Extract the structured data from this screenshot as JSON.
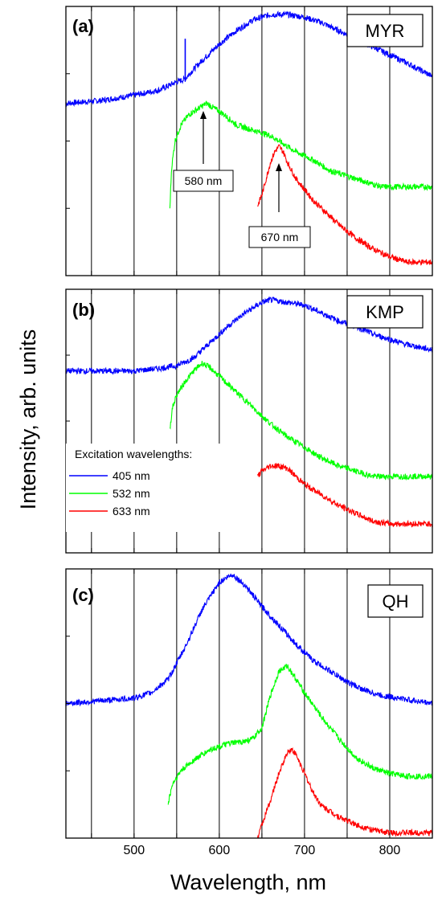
{
  "chart_data": {
    "type": "line",
    "xlabel": "Wavelength, nm",
    "ylabel": "Intensity, arb. units",
    "xlim": [
      420,
      850
    ],
    "x_ticks": [
      500,
      600,
      700,
      800
    ],
    "x_gridlines": [
      450,
      500,
      550,
      600,
      650,
      700,
      750,
      800
    ],
    "grid": "vertical",
    "legend": {
      "title": "Excitation wavelengths:",
      "placement": "panel-b-left",
      "entries": [
        {
          "label": "405 nm",
          "color": "#0000ff"
        },
        {
          "label": "532 nm",
          "color": "#00ff00"
        },
        {
          "label": "633 nm",
          "color": "#ff0000"
        }
      ]
    },
    "panels": [
      {
        "tag": "(a)",
        "sample": "MYR",
        "ylim": [
          0,
          1
        ],
        "series": [
          {
            "excitation": "405 nm",
            "color": "#0000ff",
            "x": [
              420,
              460,
              500,
              530,
              550,
              560,
              565,
              580,
              600,
              620,
              640,
              660,
              680,
              700,
              720,
              740,
              760,
              780,
              800,
              820,
              850
            ],
            "y": [
              0.64,
              0.65,
              0.67,
              0.69,
              0.72,
              0.73,
              0.75,
              0.8,
              0.86,
              0.91,
              0.95,
              0.97,
              0.97,
              0.96,
              0.94,
              0.91,
              0.88,
              0.85,
              0.82,
              0.79,
              0.74
            ]
          },
          {
            "excitation": "532 nm",
            "color": "#00ff00",
            "x": [
              542,
              544,
              548,
              555,
              565,
              575,
              585,
              595,
              605,
              620,
              640,
              660,
              670,
              690,
              710,
              730,
              750,
              770,
              790,
              810,
              830,
              850
            ],
            "y": [
              0.25,
              0.4,
              0.5,
              0.56,
              0.6,
              0.62,
              0.64,
              0.62,
              0.6,
              0.56,
              0.54,
              0.52,
              0.5,
              0.46,
              0.43,
              0.39,
              0.37,
              0.35,
              0.33,
              0.33,
              0.33,
              0.33
            ]
          },
          {
            "excitation": "633 nm",
            "color": "#ff0000",
            "x": [
              645,
              650,
              655,
              660,
              665,
              670,
              675,
              680,
              690,
              700,
              710,
              720,
              740,
              760,
              780,
              800,
              820,
              850
            ],
            "y": [
              0.26,
              0.3,
              0.36,
              0.42,
              0.46,
              0.48,
              0.46,
              0.42,
              0.36,
              0.32,
              0.28,
              0.25,
              0.19,
              0.14,
              0.1,
              0.07,
              0.05,
              0.05
            ]
          }
        ],
        "spike": {
          "x": 560,
          "y": [
            0.73,
            0.88
          ]
        },
        "annotations": [
          {
            "text": "580 nm",
            "arrow_x": 580,
            "arrow_y": [
              0.36,
              0.59
            ]
          },
          {
            "text": "670 nm",
            "arrow_x": 670,
            "arrow_y": [
              0.19,
              0.44
            ]
          }
        ]
      },
      {
        "tag": "(b)",
        "sample": "KMP",
        "ylim": [
          0,
          1
        ],
        "series": [
          {
            "excitation": "405 nm",
            "color": "#0000ff",
            "x": [
              420,
              460,
              500,
              530,
              550,
              570,
              590,
              610,
              630,
              650,
              660,
              680,
              700,
              720,
              740,
              760,
              780,
              800,
              820,
              850
            ],
            "y": [
              0.69,
              0.69,
              0.69,
              0.7,
              0.71,
              0.74,
              0.8,
              0.86,
              0.91,
              0.95,
              0.96,
              0.95,
              0.94,
              0.91,
              0.88,
              0.86,
              0.83,
              0.81,
              0.79,
              0.77
            ]
          },
          {
            "excitation": "532 nm",
            "color": "#00ff00",
            "x": [
              542,
              545,
              550,
              560,
              570,
              580,
              590,
              600,
              620,
              640,
              660,
              680,
              700,
              720,
              740,
              760,
              780,
              800,
              820,
              850
            ],
            "y": [
              0.47,
              0.55,
              0.6,
              0.65,
              0.69,
              0.72,
              0.7,
              0.67,
              0.61,
              0.55,
              0.49,
              0.44,
              0.4,
              0.36,
              0.33,
              0.31,
              0.29,
              0.29,
              0.29,
              0.29
            ]
          },
          {
            "excitation": "633 nm",
            "color": "#ff0000",
            "x": [
              645,
              650,
              660,
              670,
              680,
              690,
              700,
              720,
              740,
              760,
              780,
              800,
              820,
              850
            ],
            "y": [
              0.29,
              0.31,
              0.33,
              0.33,
              0.32,
              0.29,
              0.26,
              0.22,
              0.18,
              0.15,
              0.12,
              0.11,
              0.11,
              0.11
            ]
          }
        ]
      },
      {
        "tag": "(c)",
        "sample": "QH",
        "ylim": [
          0,
          1
        ],
        "series": [
          {
            "excitation": "405 nm",
            "color": "#0000ff",
            "x": [
              420,
              460,
              500,
              520,
              540,
              560,
              580,
              600,
              615,
              630,
              650,
              670,
              690,
              710,
              730,
              750,
              770,
              790,
              810,
              830,
              850
            ],
            "y": [
              0.5,
              0.51,
              0.52,
              0.54,
              0.59,
              0.71,
              0.85,
              0.95,
              0.98,
              0.94,
              0.86,
              0.79,
              0.72,
              0.66,
              0.62,
              0.58,
              0.55,
              0.53,
              0.52,
              0.51,
              0.5
            ]
          },
          {
            "excitation": "532 nm",
            "color": "#00ff00",
            "x": [
              540,
              545,
              555,
              570,
              590,
              610,
              630,
              640,
              650,
              660,
              670,
              680,
              690,
              700,
              720,
              740,
              760,
              780,
              800,
              820,
              850
            ],
            "y": [
              0.13,
              0.2,
              0.25,
              0.29,
              0.33,
              0.35,
              0.36,
              0.37,
              0.41,
              0.53,
              0.62,
              0.64,
              0.59,
              0.54,
              0.45,
              0.37,
              0.3,
              0.26,
              0.24,
              0.23,
              0.23
            ]
          },
          {
            "excitation": "633 nm",
            "color": "#ff0000",
            "x": [
              645,
              650,
              660,
              670,
              680,
              685,
              690,
              700,
              710,
              720,
              740,
              760,
              780,
              800,
              820,
              850
            ],
            "y": [
              0.0,
              0.05,
              0.14,
              0.24,
              0.32,
              0.33,
              0.31,
              0.24,
              0.17,
              0.12,
              0.08,
              0.05,
              0.03,
              0.02,
              0.02,
              0.02
            ]
          }
        ]
      }
    ]
  }
}
